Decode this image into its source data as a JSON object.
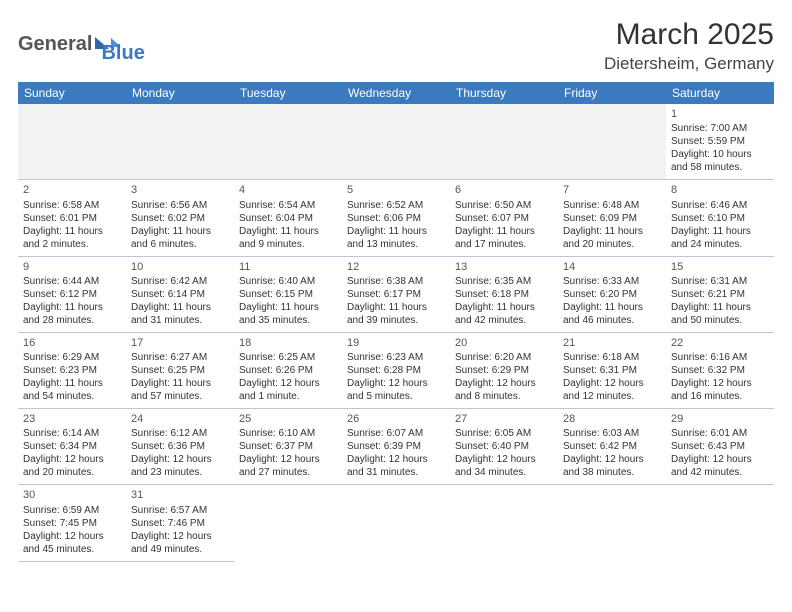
{
  "logo": {
    "part1": "General",
    "part2": "Blue"
  },
  "title": "March 2025",
  "subtitle": "Dietersheim, Germany",
  "colors": {
    "header_bg": "#3a7bbf",
    "header_text": "#ffffff",
    "cell_border": "#b8c8d8",
    "empty_bg": "#f2f2f2",
    "text": "#333333"
  },
  "weekdays": [
    "Sunday",
    "Monday",
    "Tuesday",
    "Wednesday",
    "Thursday",
    "Friday",
    "Saturday"
  ],
  "weeks": [
    [
      null,
      null,
      null,
      null,
      null,
      null,
      {
        "n": "1",
        "sr": "Sunrise: 7:00 AM",
        "ss": "Sunset: 5:59 PM",
        "dl": "Daylight: 10 hours and 58 minutes."
      }
    ],
    [
      {
        "n": "2",
        "sr": "Sunrise: 6:58 AM",
        "ss": "Sunset: 6:01 PM",
        "dl": "Daylight: 11 hours and 2 minutes."
      },
      {
        "n": "3",
        "sr": "Sunrise: 6:56 AM",
        "ss": "Sunset: 6:02 PM",
        "dl": "Daylight: 11 hours and 6 minutes."
      },
      {
        "n": "4",
        "sr": "Sunrise: 6:54 AM",
        "ss": "Sunset: 6:04 PM",
        "dl": "Daylight: 11 hours and 9 minutes."
      },
      {
        "n": "5",
        "sr": "Sunrise: 6:52 AM",
        "ss": "Sunset: 6:06 PM",
        "dl": "Daylight: 11 hours and 13 minutes."
      },
      {
        "n": "6",
        "sr": "Sunrise: 6:50 AM",
        "ss": "Sunset: 6:07 PM",
        "dl": "Daylight: 11 hours and 17 minutes."
      },
      {
        "n": "7",
        "sr": "Sunrise: 6:48 AM",
        "ss": "Sunset: 6:09 PM",
        "dl": "Daylight: 11 hours and 20 minutes."
      },
      {
        "n": "8",
        "sr": "Sunrise: 6:46 AM",
        "ss": "Sunset: 6:10 PM",
        "dl": "Daylight: 11 hours and 24 minutes."
      }
    ],
    [
      {
        "n": "9",
        "sr": "Sunrise: 6:44 AM",
        "ss": "Sunset: 6:12 PM",
        "dl": "Daylight: 11 hours and 28 minutes."
      },
      {
        "n": "10",
        "sr": "Sunrise: 6:42 AM",
        "ss": "Sunset: 6:14 PM",
        "dl": "Daylight: 11 hours and 31 minutes."
      },
      {
        "n": "11",
        "sr": "Sunrise: 6:40 AM",
        "ss": "Sunset: 6:15 PM",
        "dl": "Daylight: 11 hours and 35 minutes."
      },
      {
        "n": "12",
        "sr": "Sunrise: 6:38 AM",
        "ss": "Sunset: 6:17 PM",
        "dl": "Daylight: 11 hours and 39 minutes."
      },
      {
        "n": "13",
        "sr": "Sunrise: 6:35 AM",
        "ss": "Sunset: 6:18 PM",
        "dl": "Daylight: 11 hours and 42 minutes."
      },
      {
        "n": "14",
        "sr": "Sunrise: 6:33 AM",
        "ss": "Sunset: 6:20 PM",
        "dl": "Daylight: 11 hours and 46 minutes."
      },
      {
        "n": "15",
        "sr": "Sunrise: 6:31 AM",
        "ss": "Sunset: 6:21 PM",
        "dl": "Daylight: 11 hours and 50 minutes."
      }
    ],
    [
      {
        "n": "16",
        "sr": "Sunrise: 6:29 AM",
        "ss": "Sunset: 6:23 PM",
        "dl": "Daylight: 11 hours and 54 minutes."
      },
      {
        "n": "17",
        "sr": "Sunrise: 6:27 AM",
        "ss": "Sunset: 6:25 PM",
        "dl": "Daylight: 11 hours and 57 minutes."
      },
      {
        "n": "18",
        "sr": "Sunrise: 6:25 AM",
        "ss": "Sunset: 6:26 PM",
        "dl": "Daylight: 12 hours and 1 minute."
      },
      {
        "n": "19",
        "sr": "Sunrise: 6:23 AM",
        "ss": "Sunset: 6:28 PM",
        "dl": "Daylight: 12 hours and 5 minutes."
      },
      {
        "n": "20",
        "sr": "Sunrise: 6:20 AM",
        "ss": "Sunset: 6:29 PM",
        "dl": "Daylight: 12 hours and 8 minutes."
      },
      {
        "n": "21",
        "sr": "Sunrise: 6:18 AM",
        "ss": "Sunset: 6:31 PM",
        "dl": "Daylight: 12 hours and 12 minutes."
      },
      {
        "n": "22",
        "sr": "Sunrise: 6:16 AM",
        "ss": "Sunset: 6:32 PM",
        "dl": "Daylight: 12 hours and 16 minutes."
      }
    ],
    [
      {
        "n": "23",
        "sr": "Sunrise: 6:14 AM",
        "ss": "Sunset: 6:34 PM",
        "dl": "Daylight: 12 hours and 20 minutes."
      },
      {
        "n": "24",
        "sr": "Sunrise: 6:12 AM",
        "ss": "Sunset: 6:36 PM",
        "dl": "Daylight: 12 hours and 23 minutes."
      },
      {
        "n": "25",
        "sr": "Sunrise: 6:10 AM",
        "ss": "Sunset: 6:37 PM",
        "dl": "Daylight: 12 hours and 27 minutes."
      },
      {
        "n": "26",
        "sr": "Sunrise: 6:07 AM",
        "ss": "Sunset: 6:39 PM",
        "dl": "Daylight: 12 hours and 31 minutes."
      },
      {
        "n": "27",
        "sr": "Sunrise: 6:05 AM",
        "ss": "Sunset: 6:40 PM",
        "dl": "Daylight: 12 hours and 34 minutes."
      },
      {
        "n": "28",
        "sr": "Sunrise: 6:03 AM",
        "ss": "Sunset: 6:42 PM",
        "dl": "Daylight: 12 hours and 38 minutes."
      },
      {
        "n": "29",
        "sr": "Sunrise: 6:01 AM",
        "ss": "Sunset: 6:43 PM",
        "dl": "Daylight: 12 hours and 42 minutes."
      }
    ],
    [
      {
        "n": "30",
        "sr": "Sunrise: 6:59 AM",
        "ss": "Sunset: 7:45 PM",
        "dl": "Daylight: 12 hours and 45 minutes."
      },
      {
        "n": "31",
        "sr": "Sunrise: 6:57 AM",
        "ss": "Sunset: 7:46 PM",
        "dl": "Daylight: 12 hours and 49 minutes."
      },
      null,
      null,
      null,
      null,
      null
    ]
  ]
}
